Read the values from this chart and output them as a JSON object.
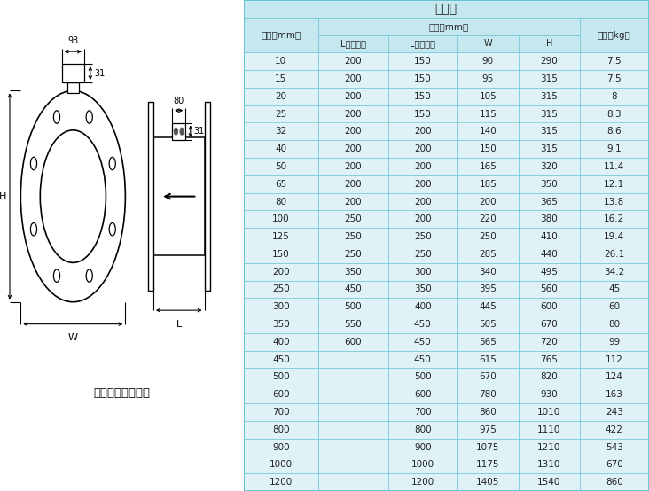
{
  "title": "分体式",
  "columns": [
    "口径（mm）",
    "L（四氟）",
    "L（橡胶）",
    "W",
    "H",
    "重量（kg）"
  ],
  "rows": [
    [
      "10",
      "200",
      "150",
      "90",
      "290",
      "7.5"
    ],
    [
      "15",
      "200",
      "150",
      "95",
      "315",
      "7.5"
    ],
    [
      "20",
      "200",
      "150",
      "105",
      "315",
      "8"
    ],
    [
      "25",
      "200",
      "150",
      "115",
      "315",
      "8.3"
    ],
    [
      "32",
      "200",
      "200",
      "140",
      "315",
      "8.6"
    ],
    [
      "40",
      "200",
      "200",
      "150",
      "315",
      "9.1"
    ],
    [
      "50",
      "200",
      "200",
      "165",
      "320",
      "11.4"
    ],
    [
      "65",
      "200",
      "200",
      "185",
      "350",
      "12.1"
    ],
    [
      "80",
      "200",
      "200",
      "200",
      "365",
      "13.8"
    ],
    [
      "100",
      "250",
      "200",
      "220",
      "380",
      "16.2"
    ],
    [
      "125",
      "250",
      "250",
      "250",
      "410",
      "19.4"
    ],
    [
      "150",
      "250",
      "250",
      "285",
      "440",
      "26.1"
    ],
    [
      "200",
      "350",
      "300",
      "340",
      "495",
      "34.2"
    ],
    [
      "250",
      "450",
      "350",
      "395",
      "560",
      "45"
    ],
    [
      "300",
      "500",
      "400",
      "445",
      "600",
      "60"
    ],
    [
      "350",
      "550",
      "450",
      "505",
      "670",
      "80"
    ],
    [
      "400",
      "600",
      "450",
      "565",
      "720",
      "99"
    ],
    [
      "450",
      "",
      "450",
      "615",
      "765",
      "112"
    ],
    [
      "500",
      "",
      "500",
      "670",
      "820",
      "124"
    ],
    [
      "600",
      "",
      "600",
      "780",
      "930",
      "163"
    ],
    [
      "700",
      "",
      "700",
      "860",
      "1010",
      "243"
    ],
    [
      "800",
      "",
      "800",
      "975",
      "1110",
      "422"
    ],
    [
      "900",
      "",
      "900",
      "1075",
      "1210",
      "543"
    ],
    [
      "1000",
      "",
      "1000",
      "1175",
      "1310",
      "670"
    ],
    [
      "1200",
      "",
      "1200",
      "1405",
      "1540",
      "860"
    ]
  ],
  "bg_color_header": "#c5e8f0",
  "bg_color_row": "#dff2f7",
  "border_color": "#5bbfce",
  "text_color": "#222222",
  "diagram_label": "法兰形（分体型）",
  "fig_width": 7.32,
  "fig_height": 5.54,
  "dpi": 100
}
